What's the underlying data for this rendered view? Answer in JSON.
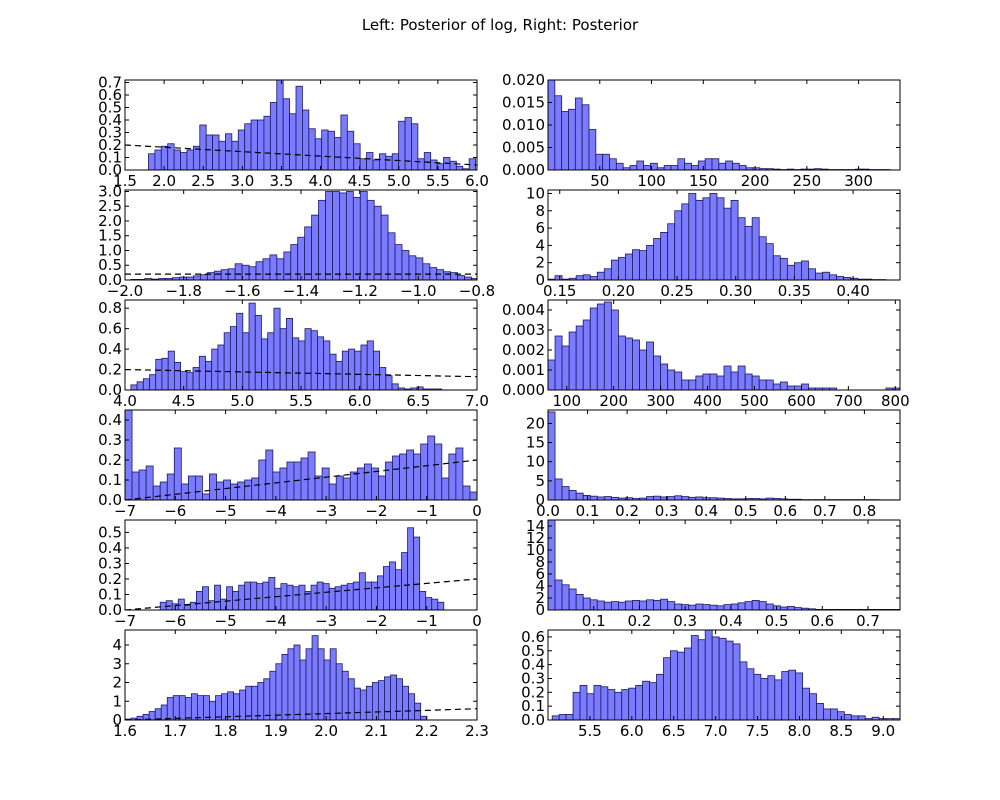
{
  "figure": {
    "title": "Left: Posterior of log, Right: Posterior",
    "bar_color": "#7b7bff",
    "bar_edge_color": "#1a1a5e",
    "prior_line_color": "#000000"
  },
  "chart_data": [
    {
      "type": "bar",
      "id": "left-1",
      "column": "left",
      "row": 1,
      "xlim": [
        1.5,
        6.0
      ],
      "ylim": [
        0,
        0.72
      ],
      "xticks": [
        1.5,
        2.0,
        2.5,
        3.0,
        3.5,
        4.0,
        4.5,
        5.0,
        5.5,
        6.0
      ],
      "xtick_labels": [
        "1.5",
        "2.0",
        "2.5",
        "3.0",
        "3.5",
        "4.0",
        "4.5",
        "5.0",
        "5.5",
        "6.0"
      ],
      "yticks": [
        0.0,
        0.1,
        0.2,
        0.3,
        0.4,
        0.5,
        0.6,
        0.7
      ],
      "ytick_labels": [
        "0.0",
        "0.1",
        "0.2",
        "0.3",
        "0.4",
        "0.5",
        "0.6",
        "0.7"
      ],
      "bin_start": 1.8,
      "bin_width": 0.082,
      "values": [
        0.13,
        0.16,
        0.19,
        0.21,
        0.16,
        0.14,
        0.16,
        0.19,
        0.36,
        0.28,
        0.28,
        0.23,
        0.29,
        0.23,
        0.32,
        0.37,
        0.4,
        0.4,
        0.43,
        0.54,
        0.73,
        0.57,
        0.45,
        0.67,
        0.48,
        0.33,
        0.25,
        0.32,
        0.31,
        0.26,
        0.44,
        0.31,
        0.21,
        0.09,
        0.14,
        0.08,
        0.13,
        0.11,
        0.13,
        0.39,
        0.42,
        0.37,
        0.09,
        0.14,
        0.08,
        0.05,
        0.1,
        0.07,
        0.03,
        0.01,
        0.09
      ],
      "prior_line": {
        "x": [
          1.5,
          6.0
        ],
        "y": [
          0.2,
          0.04
        ]
      }
    },
    {
      "type": "bar",
      "id": "right-1",
      "column": "right",
      "row": 1,
      "xlim": [
        0,
        340
      ],
      "ylim": [
        0,
        0.02
      ],
      "xticks": [
        50,
        100,
        150,
        200,
        250,
        300
      ],
      "xtick_labels": [
        "50",
        "100",
        "150",
        "200",
        "250",
        "300"
      ],
      "yticks": [
        0.0,
        0.005,
        0.01,
        0.015,
        0.02
      ],
      "ytick_labels": [
        "0.000",
        "0.005",
        "0.010",
        "0.015",
        "0.020"
      ],
      "bin_start": 0,
      "bin_width": 6.6,
      "values": [
        0.02,
        0.0165,
        0.013,
        0.0135,
        0.016,
        0.0145,
        0.009,
        0.0035,
        0.0035,
        0.0025,
        0.0015,
        0.0005,
        0.001,
        0.002,
        0.001,
        0.0015,
        0.0005,
        0.001,
        0.001,
        0.0025,
        0.0015,
        0.001,
        0.002,
        0.0025,
        0.0025,
        0.0015,
        0.002,
        0.0015,
        0.001,
        0.0005,
        0.0005,
        0.0003,
        0.0003,
        0.0002,
        0.0001,
        0.0002,
        0.0001,
        0.0002,
        0.0002,
        0.0003,
        0.0002,
        0.0001,
        0.0001,
        0.0001,
        0.0001,
        0.0002,
        0.0002,
        0.0001,
        0.0001,
        0.0001
      ]
    },
    {
      "type": "bar",
      "id": "left-2",
      "column": "left",
      "row": 2,
      "xlim": [
        -2.0,
        -0.8
      ],
      "ylim": [
        0,
        3.05
      ],
      "xticks": [
        -2.0,
        -1.8,
        -1.6,
        -1.4,
        -1.2,
        -1.0,
        -0.8
      ],
      "xtick_labels": [
        "−2.0",
        "−1.8",
        "−1.6",
        "−1.4",
        "−1.2",
        "−1.0",
        "−0.8"
      ],
      "yticks": [
        0.0,
        0.5,
        1.0,
        1.5,
        2.0,
        2.5,
        3.0
      ],
      "ytick_labels": [
        "0.0",
        "0.5",
        "1.0",
        "1.5",
        "2.0",
        "2.5",
        "3.0"
      ],
      "bin_start": -1.98,
      "bin_width": 0.0237,
      "values": [
        0.02,
        0.02,
        0.05,
        0.03,
        0.05,
        0.05,
        0.08,
        0.1,
        0.1,
        0.14,
        0.18,
        0.25,
        0.3,
        0.35,
        0.38,
        0.55,
        0.5,
        0.45,
        0.62,
        0.72,
        0.85,
        0.72,
        0.95,
        1.2,
        1.45,
        1.8,
        2.2,
        2.7,
        3.0,
        3.0,
        2.95,
        3.0,
        2.8,
        3.0,
        2.7,
        2.5,
        2.2,
        1.6,
        1.2,
        1.0,
        0.82,
        0.75,
        0.55,
        0.42,
        0.35,
        0.28,
        0.25,
        0.15,
        0.1,
        0.05
      ],
      "prior_line": {
        "x": [
          -2.0,
          -0.8
        ],
        "y": [
          0.2,
          0.2
        ]
      }
    },
    {
      "type": "bar",
      "id": "right-2",
      "column": "right",
      "row": 2,
      "xlim": [
        0.14,
        0.44
      ],
      "ylim": [
        0,
        10.4
      ],
      "xticks": [
        0.15,
        0.2,
        0.25,
        0.3,
        0.35,
        0.4
      ],
      "xtick_labels": [
        "0.15",
        "0.20",
        "0.25",
        "0.30",
        "0.35",
        "0.40"
      ],
      "yticks": [
        0,
        2,
        4,
        6,
        8,
        10
      ],
      "ytick_labels": [
        "0",
        "2",
        "4",
        "6",
        "8",
        "10"
      ],
      "bin_start": 0.14,
      "bin_width": 0.006,
      "values": [
        0.1,
        0.5,
        0.1,
        0.2,
        0.5,
        0.6,
        0.4,
        0.9,
        1.3,
        2.3,
        2.6,
        3.0,
        3.5,
        3.4,
        4.0,
        4.8,
        5.5,
        6.5,
        8.0,
        8.8,
        10.0,
        9.2,
        9.5,
        10.0,
        9.5,
        8.3,
        9.2,
        7.2,
        6.2,
        7.2,
        5.0,
        4.2,
        2.8,
        2.5,
        1.7,
        2.0,
        2.2,
        1.3,
        0.8,
        0.9,
        0.6,
        0.4,
        0.3,
        0.2,
        0.1,
        0.1,
        0.05,
        0.05,
        0.0,
        0.0
      ]
    },
    {
      "type": "bar",
      "id": "left-3",
      "column": "left",
      "row": 3,
      "xlim": [
        4.0,
        7.0
      ],
      "ylim": [
        0,
        0.88
      ],
      "xticks": [
        4.0,
        4.5,
        5.0,
        5.5,
        6.0,
        6.5,
        7.0
      ],
      "xtick_labels": [
        "4.0",
        "4.5",
        "5.0",
        "5.5",
        "6.0",
        "6.5",
        "7.0"
      ],
      "yticks": [
        0.0,
        0.2,
        0.4,
        0.6,
        0.8
      ],
      "ytick_labels": [
        "0.0",
        "0.2",
        "0.4",
        "0.6",
        "0.8"
      ],
      "bin_start": 4.05,
      "bin_width": 0.053,
      "values": [
        0.05,
        0.08,
        0.11,
        0.15,
        0.3,
        0.31,
        0.38,
        0.27,
        0.18,
        0.17,
        0.22,
        0.33,
        0.28,
        0.4,
        0.44,
        0.56,
        0.62,
        0.75,
        0.56,
        0.85,
        0.73,
        0.5,
        0.56,
        0.8,
        0.6,
        0.7,
        0.51,
        0.48,
        0.6,
        0.58,
        0.52,
        0.48,
        0.35,
        0.28,
        0.38,
        0.4,
        0.38,
        0.44,
        0.48,
        0.38,
        0.22,
        0.14,
        0.06,
        0.02,
        0.01,
        0.02,
        0.03,
        0.01,
        0.01,
        0.01
      ],
      "prior_line": {
        "x": [
          4.0,
          7.0
        ],
        "y": [
          0.2,
          0.13
        ]
      }
    },
    {
      "type": "bar",
      "id": "right-3",
      "column": "right",
      "row": 3,
      "xlim": [
        60,
        810
      ],
      "ylim": [
        0,
        0.0045
      ],
      "xticks": [
        100,
        200,
        300,
        400,
        500,
        600,
        700,
        800
      ],
      "xtick_labels": [
        "100",
        "200",
        "300",
        "400",
        "500",
        "600",
        "700",
        "800"
      ],
      "yticks": [
        0.0,
        0.001,
        0.002,
        0.003,
        0.004
      ],
      "ytick_labels": [
        "0.000",
        "0.001",
        "0.002",
        "0.003",
        "0.004"
      ],
      "bin_start": 60,
      "bin_width": 15,
      "values": [
        0.0015,
        0.0027,
        0.0022,
        0.0029,
        0.0032,
        0.0035,
        0.0041,
        0.0043,
        0.0044,
        0.004,
        0.0027,
        0.0026,
        0.0025,
        0.002,
        0.0024,
        0.0017,
        0.0013,
        0.001,
        0.0009,
        0.0005,
        0.0005,
        0.0007,
        0.0008,
        0.0008,
        0.0007,
        0.0012,
        0.0009,
        0.0012,
        0.0008,
        0.0007,
        0.0005,
        0.0005,
        0.0003,
        0.0004,
        0.0002,
        0.0002,
        0.0003,
        0.0001,
        0.0001,
        0.0001,
        0.0001,
        0.0,
        0.0,
        0.0,
        0.0,
        0.0,
        0.0,
        0.0,
        0.0001,
        0.0001
      ]
    },
    {
      "type": "bar",
      "id": "left-4",
      "column": "left",
      "row": 4,
      "xlim": [
        -7,
        0
      ],
      "ylim": [
        0,
        0.45
      ],
      "xticks": [
        -7,
        -6,
        -5,
        -4,
        -3,
        -2,
        -1,
        0
      ],
      "xtick_labels": [
        "−7",
        "−6",
        "−5",
        "−4",
        "−3",
        "−2",
        "−1",
        "0"
      ],
      "yticks": [
        0.0,
        0.1,
        0.2,
        0.3,
        0.4
      ],
      "ytick_labels": [
        "0.0",
        "0.1",
        "0.2",
        "0.3",
        "0.4"
      ],
      "bin_start": -7,
      "bin_width": 0.14,
      "values": [
        0.45,
        0.14,
        0.15,
        0.17,
        0.07,
        0.09,
        0.13,
        0.26,
        0.08,
        0.12,
        0.12,
        0.03,
        0.13,
        0.09,
        0.1,
        0.08,
        0.09,
        0.1,
        0.11,
        0.2,
        0.25,
        0.14,
        0.16,
        0.19,
        0.19,
        0.21,
        0.24,
        0.12,
        0.16,
        0.08,
        0.12,
        0.11,
        0.14,
        0.16,
        0.18,
        0.16,
        0.12,
        0.19,
        0.22,
        0.23,
        0.25,
        0.23,
        0.28,
        0.32,
        0.28,
        0.11,
        0.23,
        0.26,
        0.07,
        0.04
      ],
      "prior_line": {
        "x": [
          -7,
          0
        ],
        "y": [
          0.0,
          0.2
        ]
      }
    },
    {
      "type": "bar",
      "id": "right-4",
      "column": "right",
      "row": 4,
      "xlim": [
        0,
        0.89
      ],
      "ylim": [
        0,
        23.5
      ],
      "xticks": [
        0.0,
        0.1,
        0.2,
        0.3,
        0.4,
        0.5,
        0.6,
        0.7,
        0.8
      ],
      "xtick_labels": [
        "0.0",
        "0.1",
        "0.2",
        "0.3",
        "0.4",
        "0.5",
        "0.6",
        "0.7",
        "0.8"
      ],
      "yticks": [
        0,
        5,
        10,
        15,
        20
      ],
      "ytick_labels": [
        "0",
        "5",
        "10",
        "15",
        "20"
      ],
      "bin_start": 0,
      "bin_width": 0.0178,
      "values": [
        23,
        5.5,
        3.5,
        2.5,
        1.8,
        1.2,
        1.0,
        0.8,
        0.9,
        0.7,
        0.5,
        0.6,
        0.4,
        0.5,
        0.9,
        1.0,
        0.8,
        0.9,
        1.1,
        0.9,
        0.7,
        0.8,
        0.6,
        0.6,
        0.5,
        0.4,
        0.3,
        0.3,
        0.4,
        0.4,
        0.3,
        0.5,
        0.4,
        0.3,
        0.2,
        0.2,
        0.1,
        0.1,
        0.1,
        0.1,
        0.1,
        0.1,
        0.1,
        0.1,
        0.1,
        0.1,
        0.1,
        0.05,
        0.05,
        0.05
      ]
    },
    {
      "type": "bar",
      "id": "left-5",
      "column": "left",
      "row": 5,
      "xlim": [
        -7,
        0
      ],
      "ylim": [
        0,
        0.58
      ],
      "xticks": [
        -7,
        -6,
        -5,
        -4,
        -3,
        -2,
        -1,
        0
      ],
      "xtick_labels": [
        "−7",
        "−6",
        "−5",
        "−4",
        "−3",
        "−2",
        "−1",
        "0"
      ],
      "yticks": [
        0.0,
        0.1,
        0.2,
        0.3,
        0.4,
        0.5
      ],
      "ytick_labels": [
        "0.0",
        "0.1",
        "0.2",
        "0.3",
        "0.4",
        "0.5"
      ],
      "bin_start": -6.3,
      "bin_width": 0.12,
      "values": [
        0.05,
        0.06,
        0.04,
        0.07,
        0.03,
        0.05,
        0.12,
        0.15,
        0.06,
        0.16,
        0.07,
        0.15,
        0.12,
        0.16,
        0.18,
        0.18,
        0.17,
        0.18,
        0.21,
        0.14,
        0.17,
        0.16,
        0.15,
        0.16,
        0.12,
        0.16,
        0.18,
        0.17,
        0.14,
        0.15,
        0.16,
        0.17,
        0.18,
        0.24,
        0.18,
        0.18,
        0.22,
        0.28,
        0.31,
        0.26,
        0.37,
        0.53,
        0.47,
        0.12,
        0.08,
        0.07,
        0.05
      ],
      "prior_line": {
        "x": [
          -7,
          0
        ],
        "y": [
          0.0,
          0.2
        ]
      }
    },
    {
      "type": "bar",
      "id": "right-5",
      "column": "right",
      "row": 5,
      "xlim": [
        0,
        0.77
      ],
      "ylim": [
        0,
        15
      ],
      "xticks": [
        0.1,
        0.2,
        0.3,
        0.4,
        0.5,
        0.6,
        0.7
      ],
      "xtick_labels": [
        "0.1",
        "0.2",
        "0.3",
        "0.4",
        "0.5",
        "0.6",
        "0.7"
      ],
      "yticks": [
        0,
        2,
        4,
        6,
        8,
        10,
        12,
        14
      ],
      "ytick_labels": [
        "0",
        "2",
        "4",
        "6",
        "8",
        "10",
        "12",
        "14"
      ],
      "bin_start": 0,
      "bin_width": 0.0154,
      "values": [
        15,
        5.0,
        4.2,
        3.5,
        2.6,
        2.0,
        1.7,
        1.5,
        1.3,
        1.4,
        1.3,
        1.5,
        1.6,
        1.5,
        1.7,
        1.6,
        1.8,
        1.4,
        1.0,
        0.9,
        0.8,
        1.0,
        0.9,
        0.8,
        0.7,
        0.9,
        1.0,
        1.2,
        1.4,
        1.6,
        1.4,
        1.0,
        0.7,
        0.5,
        0.6,
        0.4,
        0.3,
        0.2,
        0.1,
        0.1,
        0.1,
        0.1,
        0.1,
        0.1,
        0.1,
        0.1,
        0.1,
        0.1,
        0.1,
        0.1
      ]
    },
    {
      "type": "bar",
      "id": "left-6",
      "column": "left",
      "row": 6,
      "xlim": [
        1.6,
        2.3
      ],
      "ylim": [
        0,
        4.8
      ],
      "xticks": [
        1.6,
        1.7,
        1.8,
        1.9,
        2.0,
        2.1,
        2.2,
        2.3
      ],
      "xtick_labels": [
        "1.6",
        "1.7",
        "1.8",
        "1.9",
        "2.0",
        "2.1",
        "2.2",
        "2.3"
      ],
      "yticks": [
        0,
        1,
        2,
        3,
        4
      ],
      "ytick_labels": [
        "0",
        "1",
        "2",
        "3",
        "4"
      ],
      "bin_start": 1.6,
      "bin_width": 0.012,
      "values": [
        0.05,
        0.1,
        0.2,
        0.3,
        0.45,
        0.6,
        0.8,
        1.2,
        1.3,
        1.3,
        1.2,
        1.4,
        1.3,
        1.3,
        1.0,
        1.3,
        1.4,
        1.5,
        1.4,
        1.6,
        1.8,
        1.8,
        2.0,
        2.2,
        2.6,
        3.0,
        3.5,
        3.8,
        4.0,
        3.2,
        3.8,
        4.5,
        3.8,
        3.2,
        3.8,
        3.0,
        2.6,
        2.2,
        1.7,
        1.6,
        1.8,
        2.0,
        2.1,
        2.3,
        2.4,
        2.2,
        1.8,
        1.4,
        0.9,
        0.2
      ],
      "prior_line": {
        "x": [
          1.6,
          2.3
        ],
        "y": [
          0.0,
          0.6
        ]
      }
    },
    {
      "type": "bar",
      "id": "right-6",
      "column": "right",
      "row": 6,
      "xlim": [
        5.0,
        9.2
      ],
      "ylim": [
        0,
        0.65
      ],
      "xticks": [
        5.5,
        6.0,
        6.5,
        7.0,
        7.5,
        8.0,
        8.5,
        9.0
      ],
      "xtick_labels": [
        "5.5",
        "6.0",
        "6.5",
        "7.0",
        "7.5",
        "8.0",
        "8.5",
        "9.0"
      ],
      "yticks": [
        0.0,
        0.1,
        0.2,
        0.3,
        0.4,
        0.5,
        0.6
      ],
      "ytick_labels": [
        "0.0",
        "0.1",
        "0.2",
        "0.3",
        "0.4",
        "0.5",
        "0.6"
      ],
      "bin_start": 5.05,
      "bin_width": 0.083,
      "values": [
        0.03,
        0.04,
        0.04,
        0.2,
        0.25,
        0.19,
        0.25,
        0.24,
        0.22,
        0.2,
        0.22,
        0.23,
        0.25,
        0.28,
        0.27,
        0.33,
        0.45,
        0.5,
        0.49,
        0.52,
        0.61,
        0.58,
        0.65,
        0.6,
        0.59,
        0.57,
        0.55,
        0.42,
        0.37,
        0.33,
        0.3,
        0.32,
        0.29,
        0.35,
        0.36,
        0.34,
        0.23,
        0.19,
        0.12,
        0.08,
        0.08,
        0.06,
        0.04,
        0.03,
        0.03,
        0.01,
        0.02,
        0.01,
        0.01,
        0.01
      ]
    }
  ]
}
